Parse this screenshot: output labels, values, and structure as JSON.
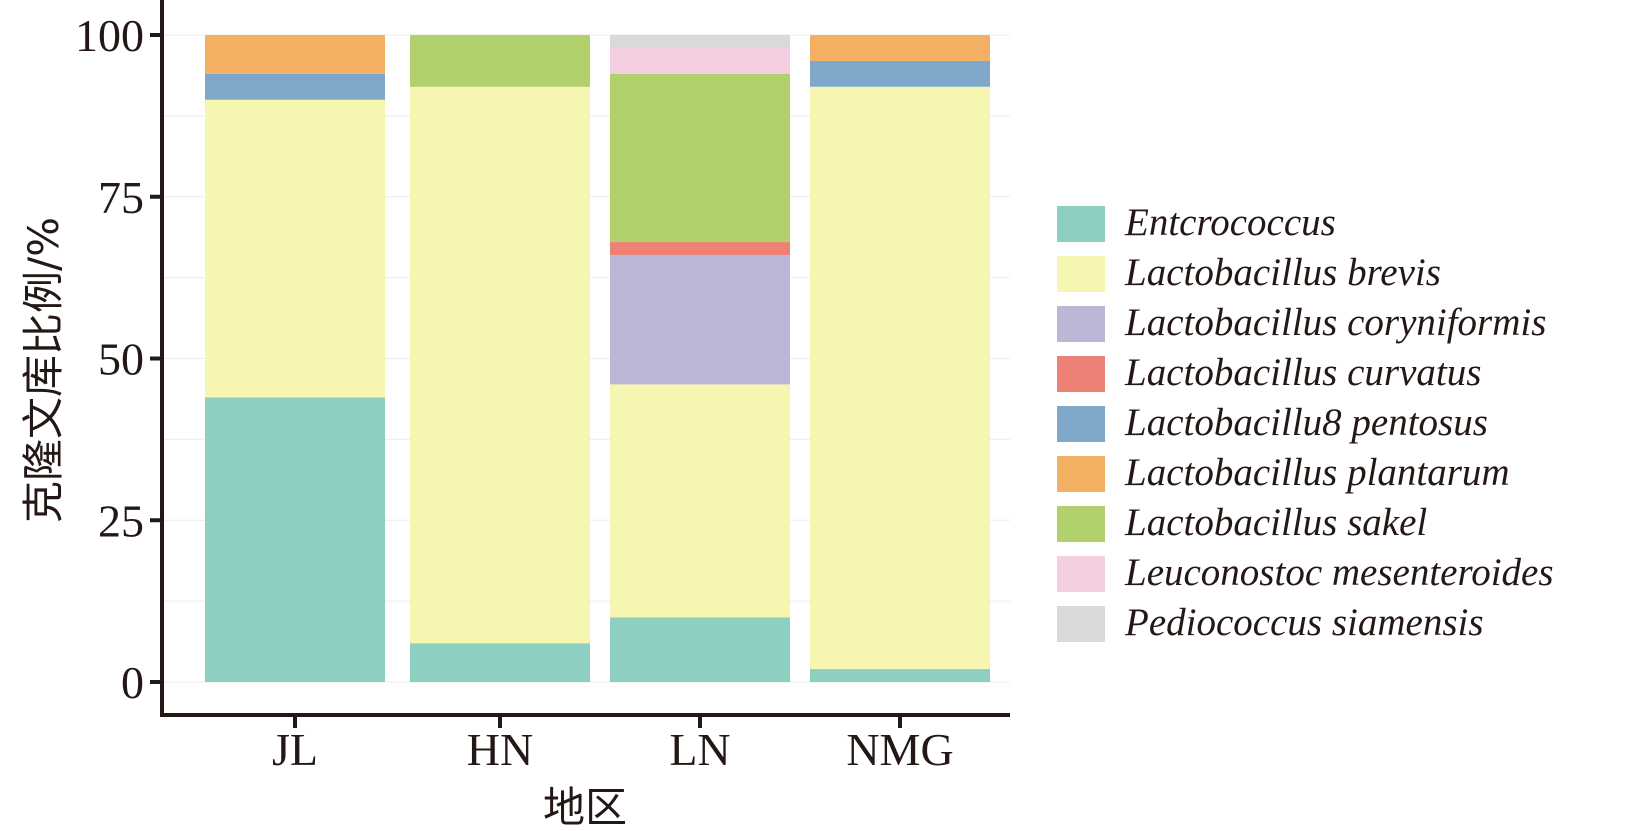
{
  "chart_data": {
    "type": "bar",
    "stacked": true,
    "categories": [
      "JL",
      "HN",
      "LN",
      "NMG"
    ],
    "xlabel": "地区",
    "ylabel": "克隆文库比例/%",
    "ylim": [
      0,
      100
    ],
    "yticks": [
      0,
      25,
      50,
      75,
      100
    ],
    "grid": true,
    "legend_position": "right",
    "series": [
      {
        "name": "Entcrococcus",
        "color": "#8dcfc0",
        "values": [
          44,
          6,
          10,
          2
        ]
      },
      {
        "name": "Lactobacillus brevis",
        "color": "#f6f6b1",
        "values": [
          46,
          86,
          36,
          90
        ]
      },
      {
        "name": "Lactobacillus coryniformis",
        "color": "#bab8d6",
        "values": [
          0,
          0,
          20,
          0
        ]
      },
      {
        "name": "Lactobacillus curvatus",
        "color": "#ee8176",
        "values": [
          0,
          0,
          2,
          0
        ]
      },
      {
        "name": "Lactobacillu8 pentosus",
        "color": "#7ea7c9",
        "values": [
          4,
          0,
          0,
          4
        ]
      },
      {
        "name": "Lactobacillus plantarum",
        "color": "#f4b062",
        "values": [
          6,
          0,
          0,
          4
        ]
      },
      {
        "name": "Lactobacillus sakel",
        "color": "#b0d16b",
        "values": [
          0,
          8,
          26,
          0
        ]
      },
      {
        "name": "Leuconostoc mesenteroides",
        "color": "#f5cee2",
        "values": [
          0,
          0,
          4,
          0
        ]
      },
      {
        "name": "Pediococcus siamensis",
        "color": "#d9d9d9",
        "values": [
          0,
          0,
          2,
          0
        ]
      }
    ]
  }
}
